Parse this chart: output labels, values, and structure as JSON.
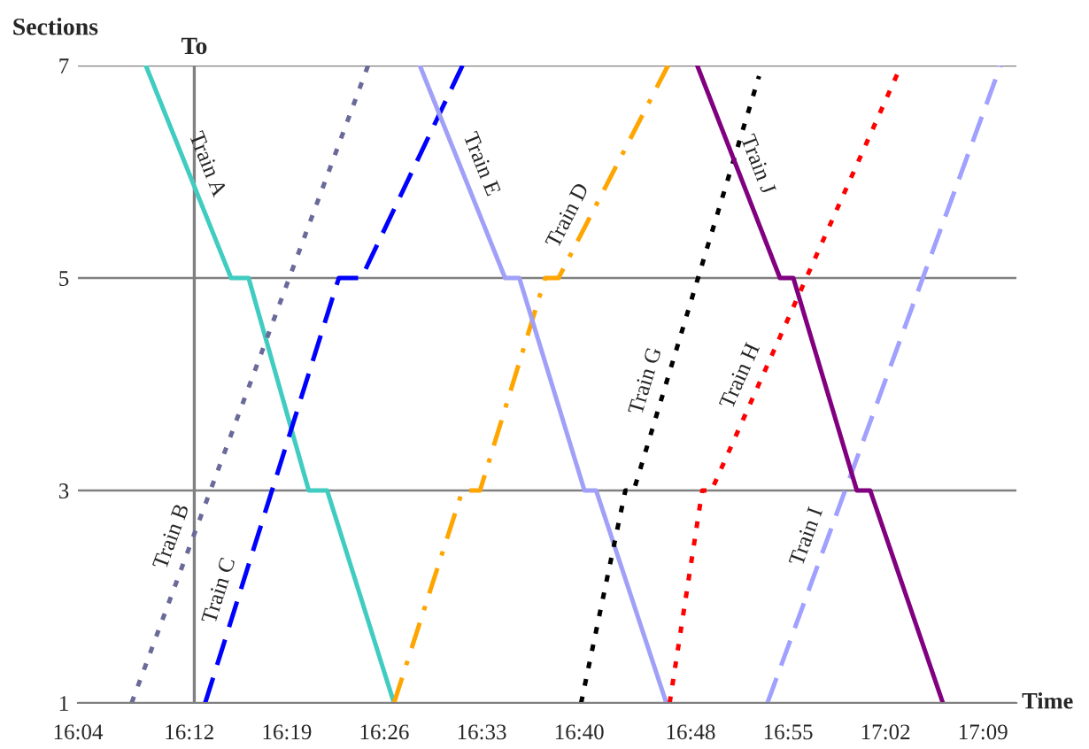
{
  "chart_data": {
    "type": "line",
    "xlabel": "Time",
    "ylabel": "Sections",
    "xlim": [
      16.0667,
      17.19
    ],
    "ylim": [
      1,
      7
    ],
    "xticks": [
      {
        "value": 16.0667,
        "label": "16:04"
      },
      {
        "value": 16.2,
        "label": "16:12"
      },
      {
        "value": 16.3167,
        "label": "16:19"
      },
      {
        "value": 16.4333,
        "label": "16:26"
      },
      {
        "value": 16.55,
        "label": "16:33"
      },
      {
        "value": 16.6667,
        "label": "16:40"
      },
      {
        "value": 16.8,
        "label": "16:48"
      },
      {
        "value": 16.9167,
        "label": "16:55"
      },
      {
        "value": 17.0333,
        "label": "17:02"
      },
      {
        "value": 17.15,
        "label": "17:09"
      }
    ],
    "yticks": [
      1,
      3,
      5,
      7
    ],
    "grid": "y",
    "legend": false,
    "marker": "none",
    "ref_lines": [
      {
        "axis": "x",
        "value": 16.206,
        "label": "To",
        "color": "#808080"
      }
    ],
    "series": [
      {
        "name": "Train A",
        "color": "#40ccc0",
        "line_style": "solid",
        "x": [
          16.148,
          16.25,
          16.271,
          16.343,
          16.365,
          16.445
        ],
        "values": [
          7,
          5,
          5,
          3,
          3,
          1
        ]
      },
      {
        "name": "Train B",
        "color": "#6a6a9a",
        "line_style": "dotted",
        "x": [
          16.131,
          16.414
        ],
        "values": [
          1,
          7
        ]
      },
      {
        "name": "Train C",
        "color": "#0000ff",
        "line_style": "dashed",
        "x": [
          16.219,
          16.379,
          16.406,
          16.527
        ],
        "values": [
          1,
          5,
          5,
          7
        ]
      },
      {
        "name": "Train D",
        "color": "#ffa500",
        "line_style": "dashdot",
        "x": [
          16.445,
          16.527,
          16.548,
          16.626,
          16.642,
          16.773
        ],
        "values": [
          1,
          3,
          3,
          5,
          5,
          7
        ]
      },
      {
        "name": "Train E",
        "color": "#a0a0f8",
        "line_style": "solid",
        "x": [
          16.476,
          16.578,
          16.595,
          16.673,
          16.687,
          16.771
        ],
        "values": [
          7,
          5,
          5,
          3,
          3,
          1
        ]
      },
      {
        "name": "Train G",
        "color": "#000000",
        "line_style": "dotted",
        "x": [
          16.669,
          16.722,
          16.732,
          16.882
        ],
        "values": [
          1,
          3,
          3,
          6.9
        ]
      },
      {
        "name": "Train H",
        "color": "#ff0000",
        "line_style": "dotted",
        "x": [
          16.775,
          16.814,
          16.825,
          17.052
        ],
        "values": [
          1,
          3,
          3,
          7
        ]
      },
      {
        "name": "Train I",
        "color": "#a0a0ff",
        "line_style": "dashed",
        "x": [
          16.892,
          17.171
        ],
        "values": [
          1,
          7
        ]
      },
      {
        "name": "Train J",
        "color": "#800080",
        "line_style": "solid",
        "x": [
          16.808,
          16.907,
          16.923,
          16.999,
          17.015,
          17.102
        ],
        "values": [
          7,
          5,
          5,
          3,
          3,
          1
        ]
      }
    ]
  }
}
